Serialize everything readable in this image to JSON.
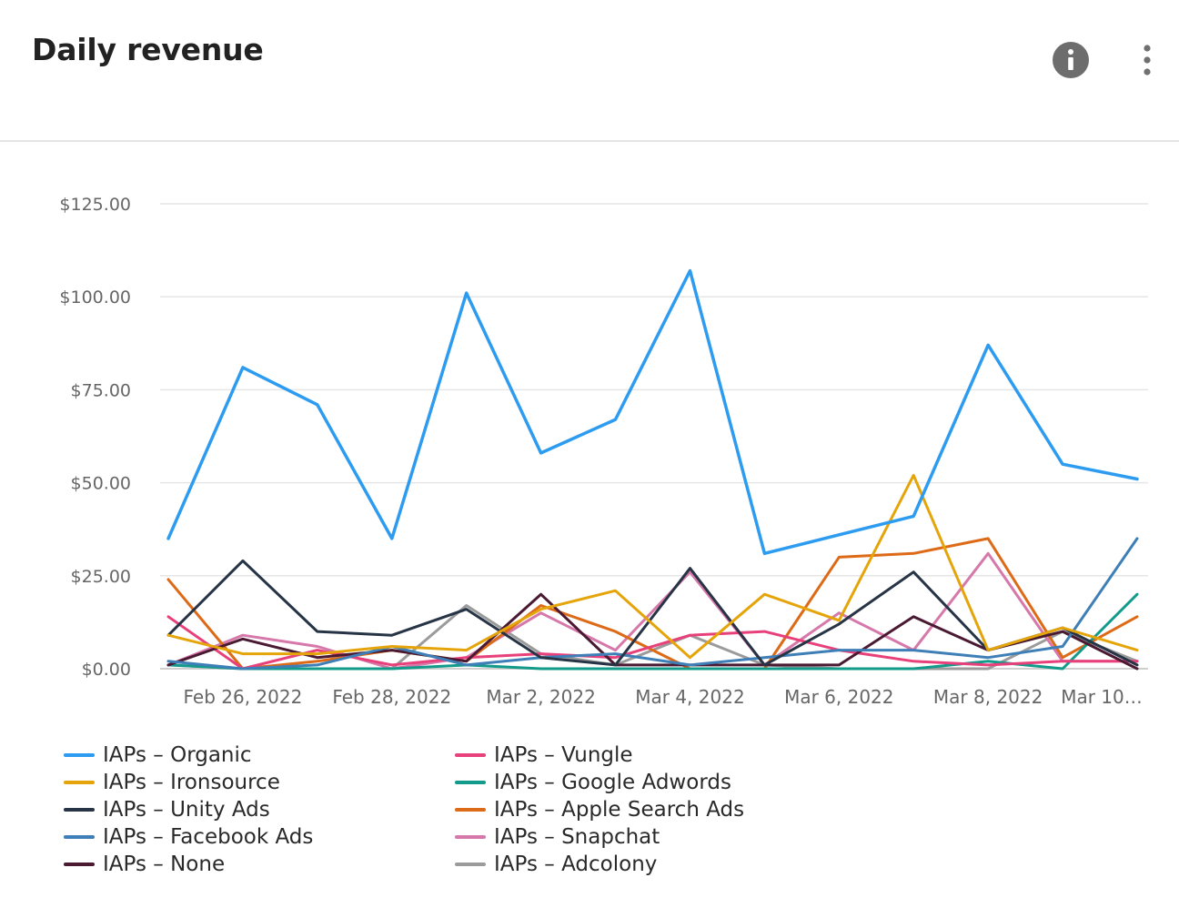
{
  "header": {
    "title": "Daily revenue",
    "info_icon": "info-icon",
    "more_icon": "more-vertical-icon"
  },
  "chart_data": {
    "type": "line",
    "title": "Daily revenue",
    "xlabel": "",
    "ylabel": "",
    "ylim": [
      0,
      125
    ],
    "yticks": [
      0,
      25,
      50,
      75,
      100,
      125
    ],
    "ytick_labels": [
      "$0.00",
      "$25.00",
      "$50.00",
      "$75.00",
      "$100.00",
      "$125.00"
    ],
    "x": [
      "Feb 25, 2022",
      "Feb 26, 2022",
      "Feb 27, 2022",
      "Feb 28, 2022",
      "Mar 1, 2022",
      "Mar 2, 2022",
      "Mar 3, 2022",
      "Mar 4, 2022",
      "Mar 5, 2022",
      "Mar 6, 2022",
      "Mar 7, 2022",
      "Mar 8, 2022",
      "Mar 9, 2022",
      "Mar 10, 2022"
    ],
    "xtick_labels": [
      "Feb 26, 2022",
      "Feb 28, 2022",
      "Mar 2, 2022",
      "Mar 4, 2022",
      "Mar 6, 2022",
      "Mar 8, 2022",
      "Mar 10…"
    ],
    "grid": true,
    "legend_position": "bottom",
    "series": [
      {
        "name": "IAPs – Organic",
        "color": "#2d9cf0",
        "values": [
          35,
          81,
          71,
          35,
          101,
          58,
          67,
          107,
          31,
          36,
          41,
          87,
          55,
          51
        ]
      },
      {
        "name": "IAPs – Ironsource",
        "color": "#e5a50a",
        "values": [
          9,
          4,
          4,
          6,
          5,
          16,
          21,
          3,
          20,
          13,
          52,
          5,
          11,
          5
        ]
      },
      {
        "name": "IAPs – Unity Ads",
        "color": "#263445",
        "values": [
          9,
          29,
          10,
          9,
          16,
          3,
          1,
          27,
          1,
          12,
          26,
          5,
          11,
          1
        ]
      },
      {
        "name": "IAPs – Facebook Ads",
        "color": "#3d7fb6",
        "values": [
          2,
          0,
          1,
          6,
          1,
          3,
          4,
          1,
          3,
          5,
          5,
          3,
          6,
          35
        ]
      },
      {
        "name": "IAPs – None",
        "color": "#4a1a33",
        "values": [
          1,
          8,
          3,
          5,
          2,
          20,
          1,
          1,
          1,
          1,
          14,
          5,
          10,
          0
        ]
      },
      {
        "name": "IAPs – Vungle",
        "color": "#e8407a",
        "values": [
          14,
          0,
          5,
          1,
          3,
          4,
          3,
          9,
          10,
          5,
          2,
          1,
          2,
          2
        ]
      },
      {
        "name": "IAPs – Google Adwords",
        "color": "#129a8a",
        "values": [
          1,
          0,
          0,
          0,
          1,
          0,
          0,
          0,
          0,
          0,
          0,
          2,
          0,
          20
        ]
      },
      {
        "name": "IAPs – Apple Search Ads",
        "color": "#dd6a17",
        "values": [
          24,
          0,
          2,
          5,
          2,
          17,
          10,
          0,
          0,
          30,
          31,
          35,
          3,
          14
        ]
      },
      {
        "name": "IAPs – Snapchat",
        "color": "#d678aa",
        "values": [
          1,
          9,
          6,
          0,
          3,
          15,
          5,
          26,
          1,
          15,
          5,
          31,
          2,
          2
        ]
      },
      {
        "name": "IAPs – Adcolony",
        "color": "#9b9b9b",
        "values": [
          1,
          0,
          0,
          0,
          17,
          4,
          1,
          9,
          1,
          0,
          0,
          0,
          10,
          2
        ]
      }
    ]
  }
}
